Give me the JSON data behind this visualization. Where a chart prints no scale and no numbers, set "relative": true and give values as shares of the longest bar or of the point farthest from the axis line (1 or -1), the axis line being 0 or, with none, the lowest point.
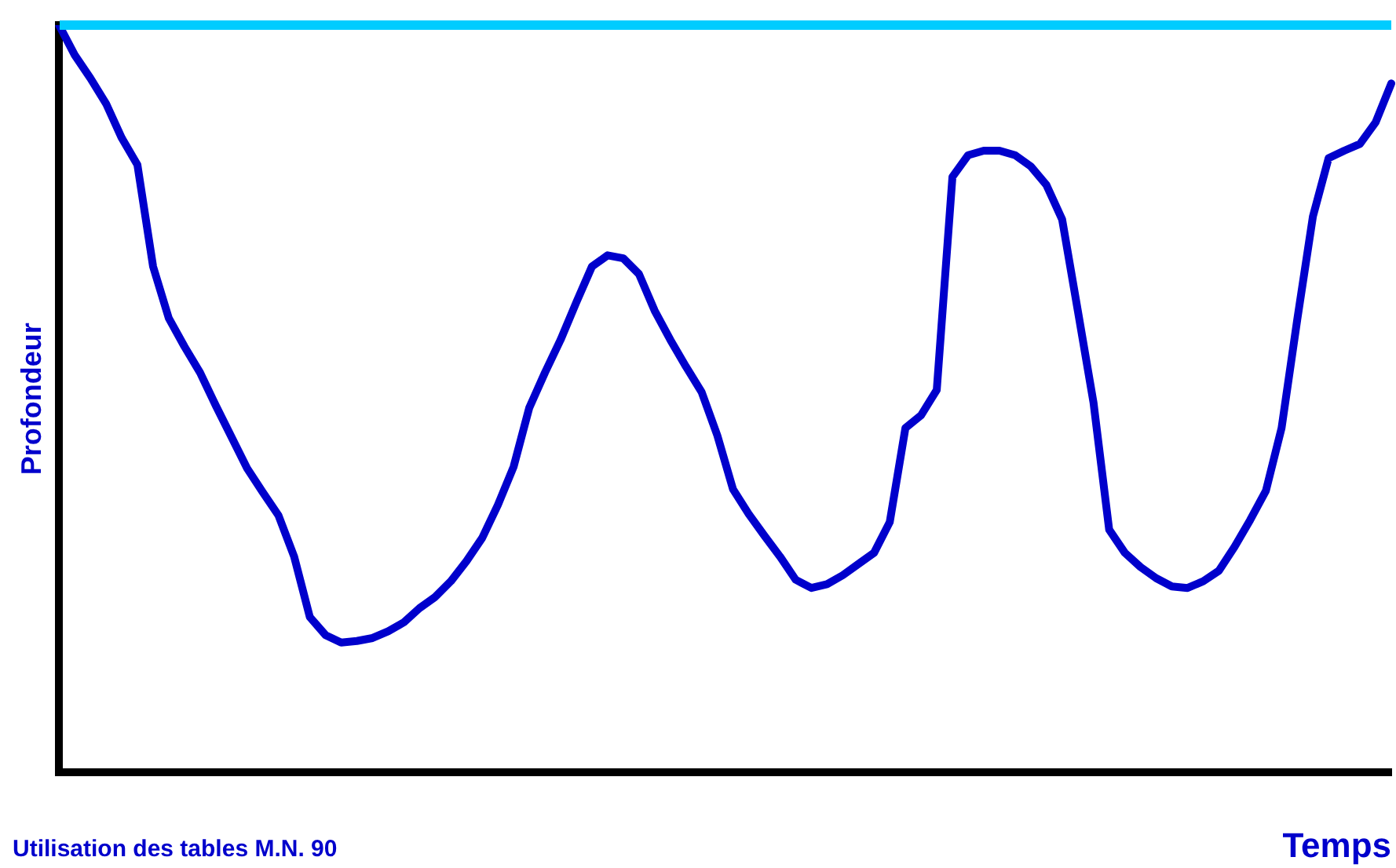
{
  "chart_data": {
    "type": "line",
    "relative": true,
    "xlabel": "Temps",
    "ylabel": "Profondeur",
    "annotations": [
      "Utilisation des tables M.N. 90"
    ],
    "grid": false,
    "legend": false,
    "marker": "none",
    "line_style": "solid",
    "categories": [
      null,
      null,
      null,
      null,
      null,
      null,
      null,
      null,
      null,
      null,
      null,
      null,
      null,
      null,
      null,
      null,
      null,
      null,
      null,
      null,
      null,
      null,
      null,
      null,
      null,
      null,
      null,
      null,
      null,
      null,
      null,
      null,
      null,
      null,
      null,
      null,
      null,
      null,
      null,
      null,
      null,
      null,
      null,
      null,
      null,
      null,
      null,
      null,
      null,
      null,
      null,
      null,
      null,
      null,
      null,
      null,
      null,
      null,
      null,
      null,
      null,
      null,
      null,
      null,
      null,
      null,
      null,
      null,
      null,
      null,
      null,
      null,
      null,
      null,
      null,
      null,
      null,
      null,
      null,
      null,
      null,
      null,
      null,
      null,
      null,
      null
    ],
    "series": [
      {
        "color": "#0000cc",
        "values": [
          1.0,
          0.96,
          0.929,
          0.895,
          0.849,
          0.813,
          0.677,
          0.608,
          0.57,
          0.535,
          0.491,
          0.449,
          0.407,
          0.375,
          0.344,
          0.289,
          0.208,
          0.184,
          0.174,
          0.176,
          0.18,
          0.189,
          0.201,
          0.22,
          0.235,
          0.256,
          0.283,
          0.314,
          0.358,
          0.409,
          0.488,
          0.535,
          0.579,
          0.629,
          0.677,
          0.692,
          0.688,
          0.667,
          0.618,
          0.579,
          0.543,
          0.509,
          0.451,
          0.379,
          0.346,
          0.317,
          0.289,
          0.258,
          0.247,
          0.252,
          0.264,
          0.279,
          0.294,
          0.335,
          0.461,
          0.478,
          0.512,
          0.797,
          0.826,
          0.832,
          0.832,
          0.826,
          0.811,
          0.786,
          0.74,
          0.618,
          0.495,
          0.325,
          0.294,
          0.275,
          0.26,
          0.249,
          0.247,
          0.256,
          0.27,
          0.302,
          0.338,
          0.377,
          0.461,
          0.606,
          0.744,
          0.822,
          0.832,
          0.841,
          0.87,
          0.922
        ]
      }
    ]
  }
}
